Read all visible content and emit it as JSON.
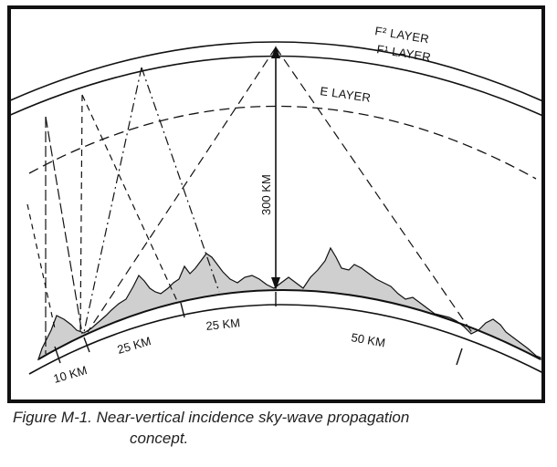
{
  "layers": {
    "f2": "F² LAYER",
    "f1": "F¹ LAYER",
    "e": "E LAYER"
  },
  "height_label": "300 KM",
  "distances": {
    "d1": "10 KM",
    "d2": "25 KM",
    "d3": "25 KM",
    "d4": "50 KM"
  },
  "caption": {
    "line1": "Figure M-1. Near-vertical incidence sky-wave propagation",
    "line2": "concept."
  }
}
